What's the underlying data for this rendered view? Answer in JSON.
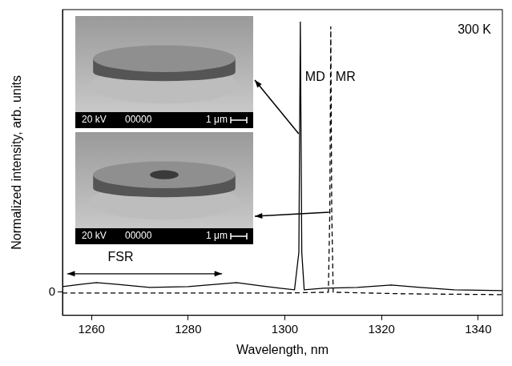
{
  "chart_data": {
    "type": "line",
    "x_label": "Wavelength, nm",
    "y_label": "Normalized intensity, arb. units",
    "xlim": [
      1254,
      1345
    ],
    "xticks": [
      1260,
      1280,
      1300,
      1320,
      1340
    ],
    "ylim": [
      -0.29,
      3.54
    ],
    "yticks": [
      0
    ],
    "grid": false,
    "series": [
      {
        "name": "MD",
        "color": "#000000",
        "line_style": "solid",
        "x": [
          1254,
          1258,
          1261,
          1265,
          1272,
          1280,
          1286,
          1290,
          1295,
          1299,
          1302,
          1302.9,
          1303.2,
          1303.5,
          1304,
          1308,
          1315,
          1322,
          1328,
          1335,
          1345
        ],
        "values": [
          0.07,
          0.1,
          0.12,
          0.1,
          0.06,
          0.07,
          0.1,
          0.12,
          0.08,
          0.05,
          0.03,
          0.5,
          3.39,
          0.5,
          0.03,
          0.05,
          0.06,
          0.09,
          0.06,
          0.03,
          0.02
        ]
      },
      {
        "name": "MR",
        "color": "#000000",
        "line_style": "dashed",
        "x": [
          1254,
          1280,
          1300,
          1309,
          1309.3,
          1309.5,
          1309.7,
          1310,
          1325,
          1345
        ],
        "values": [
          -0.01,
          -0.01,
          -0.01,
          0,
          1.0,
          3.33,
          1.0,
          0,
          -0.02,
          -0.03
        ]
      }
    ],
    "annotations": [
      {
        "text": "300 K"
      },
      {
        "text": "FSR",
        "x": [
          1255,
          1287
        ]
      }
    ],
    "insets": [
      {
        "target": "MD",
        "texts": [
          "20 kV",
          "00000",
          "1 μm"
        ]
      },
      {
        "target": "MR",
        "texts": [
          "20 kV",
          "00000",
          "1 μm"
        ]
      }
    ]
  }
}
